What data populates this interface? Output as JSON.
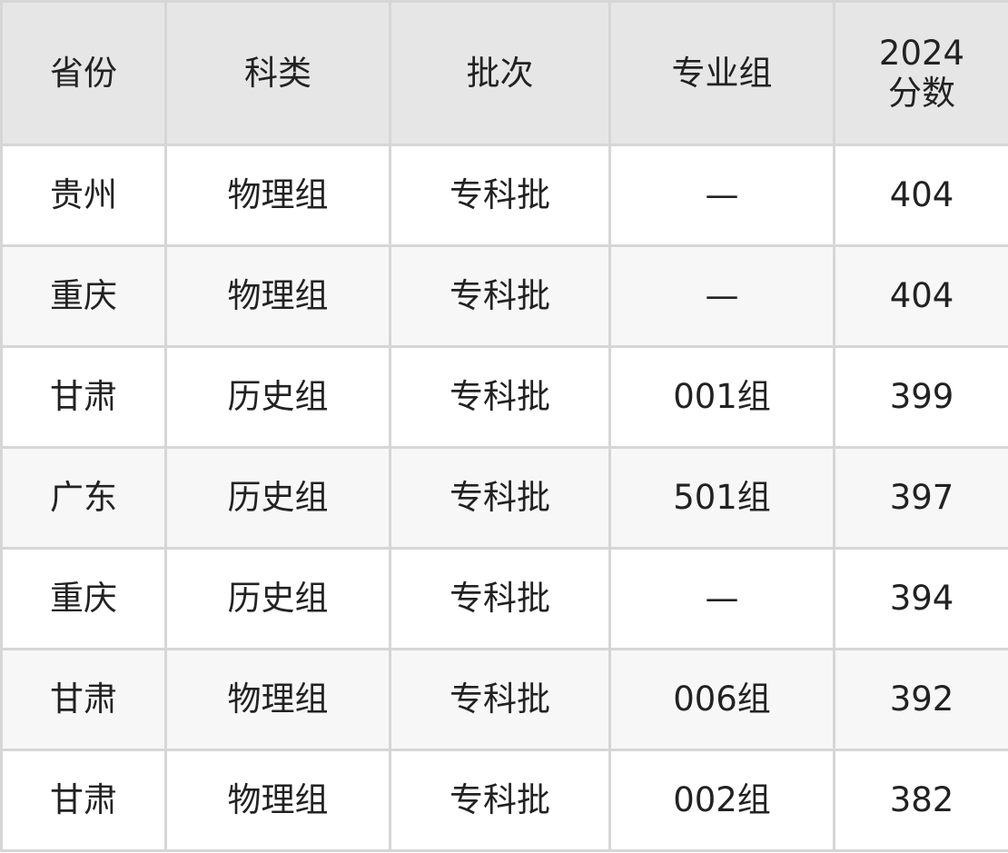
{
  "table": {
    "headers": [
      "省份",
      "科类",
      "批次",
      "专业组",
      "2024\n分数"
    ],
    "header_score_line1": "2024",
    "header_score_line2": "分数",
    "rows": [
      [
        "贵州",
        "物理组",
        "专科批",
        "—",
        "404"
      ],
      [
        "重庆",
        "物理组",
        "专科批",
        "—",
        "404"
      ],
      [
        "甘肃",
        "历史组",
        "专科批",
        "001组",
        "399"
      ],
      [
        "广东",
        "历史组",
        "专科批",
        "501组",
        "397"
      ],
      [
        "重庆",
        "历史组",
        "专科批",
        "—",
        "394"
      ],
      [
        "甘肃",
        "物理组",
        "专科批",
        "006组",
        "392"
      ],
      [
        "甘肃",
        "物理组",
        "专科批",
        "002组",
        "382"
      ]
    ]
  },
  "colors": {
    "header_bg": "#e6e6e6",
    "alt_row_bg": "#f7f7f7",
    "border": "#d6d6d6"
  }
}
